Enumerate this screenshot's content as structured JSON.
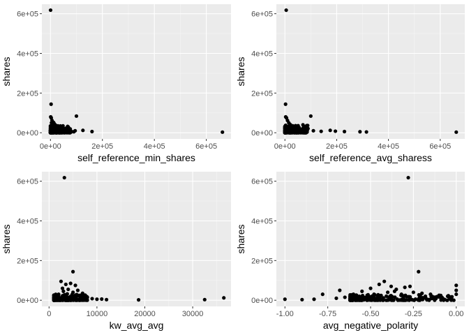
{
  "chart_data": [
    {
      "type": "scatter",
      "xlabel": "self_reference_min_shares",
      "ylabel": "shares",
      "xlim": [
        -33000,
        695000
      ],
      "ylim": [
        -31000,
        648000
      ],
      "xticks": [
        {
          "v": 0,
          "label": "0e+00"
        },
        {
          "v": 200000,
          "label": "2e+05"
        },
        {
          "v": 400000,
          "label": "4e+05"
        },
        {
          "v": 600000,
          "label": "6e+05"
        }
      ],
      "yticks": [
        {
          "v": 0,
          "label": "0e+00"
        },
        {
          "v": 200000,
          "label": "2e+05"
        },
        {
          "v": 400000,
          "label": "4e+05"
        },
        {
          "v": 600000,
          "label": "6e+05"
        }
      ],
      "grid": true,
      "points": [
        [
          500,
          617900
        ],
        [
          2500,
          144000
        ],
        [
          1000,
          80000
        ],
        [
          3000,
          75000
        ],
        [
          6000,
          62000
        ],
        [
          12000,
          52000
        ],
        [
          15000,
          45000
        ],
        [
          20000,
          38000
        ],
        [
          30000,
          30000
        ],
        [
          40000,
          22000
        ],
        [
          50000,
          18000
        ],
        [
          60000,
          12000
        ],
        [
          70000,
          9000
        ],
        [
          80000,
          7000
        ],
        [
          90000,
          5000
        ],
        [
          100000,
          84000
        ],
        [
          95000,
          10000
        ],
        [
          125000,
          12000
        ],
        [
          160000,
          6000
        ],
        [
          662000,
          3000
        ],
        [
          2000,
          20000
        ],
        [
          5000,
          35000
        ],
        [
          8000,
          28000
        ],
        [
          10000,
          15000
        ],
        [
          25000,
          10000
        ],
        [
          35000,
          8000
        ],
        [
          45000,
          6000
        ],
        [
          4000,
          50000
        ],
        [
          7000,
          42000
        ],
        [
          18000,
          25000
        ]
      ],
      "dense": [
        {
          "x_from": 0,
          "x_to": 80000,
          "y_from": 0,
          "y_to": 35000
        }
      ]
    },
    {
      "type": "scatter",
      "xlabel": "self_reference_avg_sharess",
      "ylabel": "shares",
      "xlim": [
        -33000,
        695000
      ],
      "ylim": [
        -31000,
        648000
      ],
      "xticks": [
        {
          "v": 0,
          "label": "0e+00"
        },
        {
          "v": 200000,
          "label": "2e+05"
        },
        {
          "v": 400000,
          "label": "4e+05"
        },
        {
          "v": 600000,
          "label": "6e+05"
        }
      ],
      "yticks": [
        {
          "v": 0,
          "label": "0e+00"
        },
        {
          "v": 200000,
          "label": "2e+05"
        },
        {
          "v": 400000,
          "label": "4e+05"
        },
        {
          "v": 600000,
          "label": "6e+05"
        }
      ],
      "grid": true,
      "points": [
        [
          5000,
          617900
        ],
        [
          2500,
          144000
        ],
        [
          3000,
          80000
        ],
        [
          6000,
          75000
        ],
        [
          10000,
          62000
        ],
        [
          15000,
          50000
        ],
        [
          20000,
          42000
        ],
        [
          30000,
          35000
        ],
        [
          40000,
          28000
        ],
        [
          50000,
          20000
        ],
        [
          60000,
          15000
        ],
        [
          70000,
          10000
        ],
        [
          80000,
          8000
        ],
        [
          100000,
          84000
        ],
        [
          110000,
          10000
        ],
        [
          140000,
          7000
        ],
        [
          175000,
          12000
        ],
        [
          195000,
          8000
        ],
        [
          230000,
          6000
        ],
        [
          290000,
          5000
        ],
        [
          315000,
          4000
        ],
        [
          662000,
          3000
        ],
        [
          4000,
          30000
        ],
        [
          8000,
          22000
        ],
        [
          12000,
          18000
        ],
        [
          25000,
          15000
        ],
        [
          35000,
          12000
        ],
        [
          45000,
          8000
        ],
        [
          55000,
          6000
        ]
      ],
      "dense": [
        {
          "x_from": 0,
          "x_to": 90000,
          "y_from": 0,
          "y_to": 40000
        }
      ]
    },
    {
      "type": "scatter",
      "xlabel": "kw_avg_avg",
      "ylabel": "shares",
      "xlim": [
        -1500,
        38000
      ],
      "ylim": [
        -31000,
        648000
      ],
      "xticks": [
        {
          "v": 0,
          "label": "0"
        },
        {
          "v": 10000,
          "label": "10000"
        },
        {
          "v": 20000,
          "label": "20000"
        },
        {
          "v": 30000,
          "label": "30000"
        }
      ],
      "yticks": [
        {
          "v": 0,
          "label": "0e+00"
        },
        {
          "v": 200000,
          "label": "2e+05"
        },
        {
          "v": 400000,
          "label": "4e+05"
        },
        {
          "v": 600000,
          "label": "6e+05"
        }
      ],
      "grid": true,
      "points": [
        [
          3200,
          617900
        ],
        [
          5000,
          144000
        ],
        [
          2500,
          95000
        ],
        [
          3500,
          80000
        ],
        [
          4500,
          85000
        ],
        [
          5500,
          75000
        ],
        [
          2800,
          60000
        ],
        [
          4000,
          55000
        ],
        [
          6000,
          50000
        ],
        [
          3000,
          45000
        ],
        [
          5000,
          40000
        ],
        [
          7000,
          35000
        ],
        [
          2000,
          30000
        ],
        [
          6500,
          25000
        ],
        [
          8000,
          15000
        ],
        [
          9000,
          8000
        ],
        [
          10000,
          5000
        ],
        [
          11000,
          6000
        ],
        [
          12000,
          3000
        ],
        [
          18700,
          2000
        ],
        [
          32500,
          3000
        ],
        [
          36500,
          12000
        ],
        [
          1200,
          10000
        ],
        [
          1500,
          20000
        ],
        [
          2200,
          8000
        ],
        [
          3800,
          32000
        ],
        [
          4800,
          28000
        ],
        [
          5800,
          20000
        ],
        [
          7500,
          10000
        ]
      ],
      "dense": [
        {
          "x_from": 1000,
          "x_to": 8000,
          "y_from": 0,
          "y_to": 30000
        }
      ]
    },
    {
      "type": "scatter",
      "xlabel": "avg_negative_polarity",
      "ylabel": "shares",
      "xlim": [
        -1.05,
        0.05
      ],
      "ylim": [
        -31000,
        648000
      ],
      "xticks": [
        {
          "v": -1.0,
          "label": "-1.00"
        },
        {
          "v": -0.75,
          "label": "-0.75"
        },
        {
          "v": -0.5,
          "label": "-0.50"
        },
        {
          "v": -0.25,
          "label": "-0.25"
        },
        {
          "v": 0.0,
          "label": "0.00"
        }
      ],
      "yticks": [
        {
          "v": 0,
          "label": "0e+00"
        },
        {
          "v": 200000,
          "label": "2e+05"
        },
        {
          "v": 400000,
          "label": "4e+05"
        },
        {
          "v": 600000,
          "label": "6e+05"
        }
      ],
      "grid": true,
      "points": [
        [
          -0.28,
          617900
        ],
        [
          -0.22,
          144000
        ],
        [
          -0.45,
          80000
        ],
        [
          -0.42,
          95000
        ],
        [
          -0.38,
          70000
        ],
        [
          -0.3,
          65000
        ],
        [
          -0.55,
          45000
        ],
        [
          -0.6,
          30000
        ],
        [
          -0.5,
          60000
        ],
        [
          -0.35,
          55000
        ],
        [
          -0.25,
          40000
        ],
        [
          -0.2,
          35000
        ],
        [
          -0.15,
          30000
        ],
        [
          -0.1,
          25000
        ],
        [
          -0.05,
          20000
        ],
        [
          0.0,
          75000
        ],
        [
          0.0,
          50000
        ],
        [
          0.0,
          30000
        ],
        [
          -0.68,
          50000
        ],
        [
          -0.78,
          30000
        ],
        [
          -0.83,
          5000
        ],
        [
          -0.9,
          3000
        ],
        [
          -1.0,
          5000
        ],
        [
          -0.7,
          10000
        ],
        [
          -0.65,
          15000
        ],
        [
          -0.48,
          30000
        ],
        [
          -0.4,
          40000
        ],
        [
          -0.32,
          30000
        ],
        [
          -0.18,
          20000
        ],
        [
          -0.12,
          15000
        ],
        [
          -0.08,
          10000
        ],
        [
          -0.03,
          8000
        ],
        [
          -0.27,
          70000
        ],
        [
          -0.36,
          45000
        ],
        [
          -0.52,
          25000
        ],
        [
          -0.58,
          20000
        ],
        [
          -0.62,
          8000
        ]
      ],
      "dense": [
        {
          "x_from": -0.62,
          "x_to": 0.0,
          "y_from": 0,
          "y_to": 28000
        }
      ]
    }
  ]
}
